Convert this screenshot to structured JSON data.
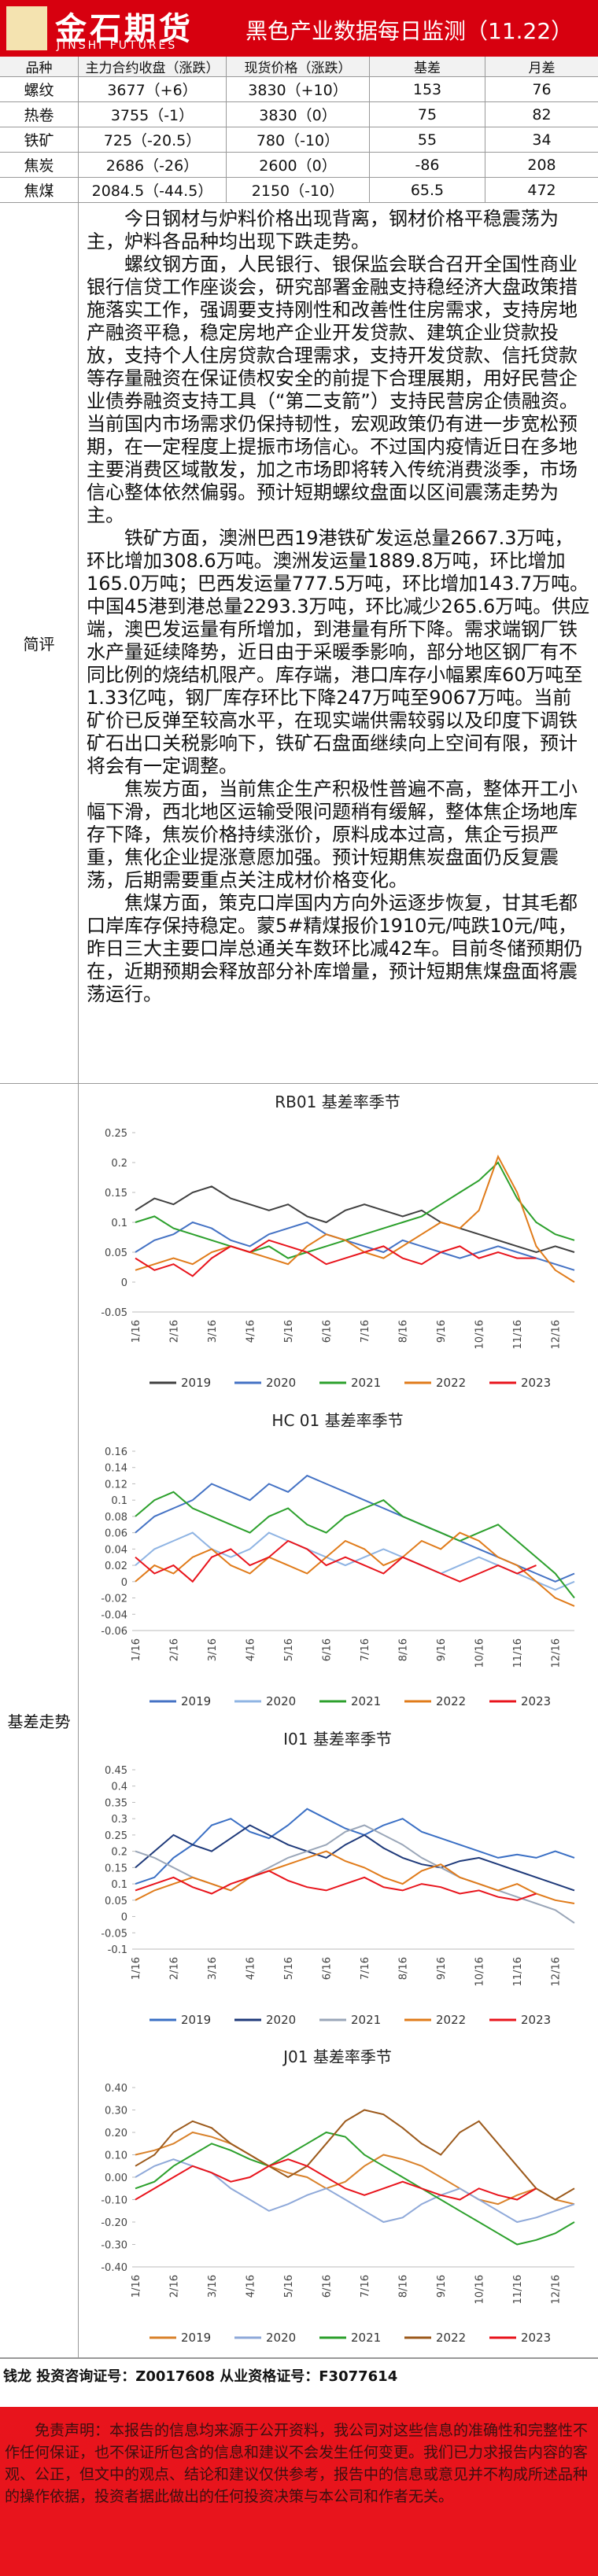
{
  "header": {
    "logo_cn": "金石期货",
    "logo_en": "JINSHI FUTURES",
    "title": "黑色产业数据每日监测（11.22）"
  },
  "table": {
    "columns": [
      "品种",
      "主力合约收盘（涨跌）",
      "现货价格（涨跌）",
      "基差",
      "月差"
    ],
    "rows": [
      [
        "螺纹",
        "3677（+6）",
        "3830（+10）",
        153,
        76
      ],
      [
        "热卷",
        "3755（-1）",
        "3830（0）",
        75,
        82
      ],
      [
        "铁矿",
        "725（-20.5）",
        "780（-10）",
        55,
        34
      ],
      [
        "焦炭",
        "2686（-26）",
        "2600（0）",
        -86,
        208
      ],
      [
        "焦煤",
        "2084.5（-44.5）",
        "2150（-10）",
        65.5,
        472
      ]
    ]
  },
  "commentary": {
    "label": "简评",
    "paragraphs": [
      "今日钢材与炉料价格出现背离，钢材价格平稳震荡为主，炉料各品种均出现下跌走势。",
      "螺纹钢方面，人民银行、银保监会联合召开全国性商业银行信贷工作座谈会，研究部署金融支持稳经济大盘政策措施落实工作，强调要支持刚性和改善性住房需求，支持房地产融资平稳，稳定房地产企业开发贷款、建筑企业贷款投放，支持个人住房贷款合理需求，支持开发贷款、信托贷款等存量融资在保证债权安全的前提下合理展期，用好民营企业债券融资支持工具（“第二支箭”）支持民营房企债融资。当前国内市场需求仍保持韧性，宏观政策仍有进一步宽松预期，在一定程度上提振市场信心。不过国内疫情近日在多地主要消费区域散发，加之市场即将转入传统消费淡季，市场信心整体依然偏弱。预计短期螺纹盘面以区间震荡走势为主。",
      "铁矿方面，澳洲巴西19港铁矿发运总量2667.3万吨，环比增加308.6万吨。澳洲发运量1889.8万吨，环比增加165.0万吨；巴西发运量777.5万吨，环比增加143.7万吨。中国45港到港总量2293.3万吨，环比减少265.6万吨。供应端，澳巴发运量有所增加，到港量有所下降。需求端钢厂铁水产量延续降势，近日由于采暖季影响，部分地区钢厂有不同比例的烧结机限产。库存端，港口库存小幅累库60万吨至1.33亿吨，钢厂库存环比下降247万吨至9067万吨。当前矿价已反弹至较高水平，在现实端供需较弱以及印度下调铁矿石出口关税影响下，铁矿石盘面继续向上空间有限，预计将会有一定调整。",
      "焦炭方面，当前焦企生产积极性普遍不高，整体开工小幅下滑，西北地区运输受限问题稍有缓解，整体焦企场地库存下降，焦炭价格持续涨价，原料成本过高，焦企亏损严重，焦化企业提涨意愿加强。预计短期焦炭盘面仍反复震荡，后期需要重点关注成材价格变化。",
      "焦煤方面，策克口岸国内方向外运逐步恢复，甘其毛都口岸库存保持稳定。蒙5#精煤报价1910元/吨跌10元/吨，昨日三大主要口岸总通关车数环比减42车。目前冬储预期仍在，近期预期会释放部分补库增量，预计短期焦煤盘面将震荡运行。"
    ]
  },
  "basis": {
    "label": "基差走势"
  },
  "chart_data": [
    {
      "type": "line",
      "title": "RB01 基差率季节",
      "categories": [
        "1/16",
        null,
        "2/16",
        null,
        "3/16",
        null,
        "4/16",
        null,
        "5/16",
        null,
        "6/16",
        null,
        "7/16",
        null,
        "8/16",
        null,
        "9/16",
        null,
        "10/16",
        null,
        "11/16",
        null,
        "12/16",
        null
      ],
      "ylim": [
        -0.05,
        0.25
      ],
      "yticks": [
        -0.05,
        0,
        0.05,
        0.1,
        0.15,
        0.2,
        0.25
      ],
      "series": [
        {
          "name": "2019",
          "color": "#404040",
          "values": [
            0.12,
            0.14,
            0.13,
            0.15,
            0.16,
            0.14,
            0.13,
            0.12,
            0.13,
            0.11,
            0.1,
            0.12,
            0.13,
            0.12,
            0.11,
            0.12,
            0.1,
            0.09,
            0.08,
            0.07,
            0.06,
            0.05,
            0.06,
            0.05
          ]
        },
        {
          "name": "2020",
          "color": "#4472c4",
          "values": [
            0.05,
            0.07,
            0.08,
            0.1,
            0.09,
            0.07,
            0.06,
            0.08,
            0.09,
            0.1,
            0.08,
            0.07,
            0.06,
            0.05,
            0.07,
            0.06,
            0.05,
            0.04,
            0.05,
            0.06,
            0.05,
            0.04,
            0.03,
            0.02
          ]
        },
        {
          "name": "2021",
          "color": "#2ca02c",
          "values": [
            0.1,
            0.11,
            0.09,
            0.08,
            0.07,
            0.06,
            0.05,
            0.06,
            0.04,
            0.05,
            0.06,
            0.07,
            0.08,
            0.09,
            0.1,
            0.11,
            0.13,
            0.15,
            0.17,
            0.2,
            0.14,
            0.1,
            0.08,
            0.07
          ]
        },
        {
          "name": "2022",
          "color": "#e07b1a",
          "values": [
            0.02,
            0.03,
            0.04,
            0.03,
            0.05,
            0.06,
            0.05,
            0.04,
            0.03,
            0.06,
            0.08,
            0.07,
            0.05,
            0.04,
            0.06,
            0.08,
            0.1,
            0.09,
            0.12,
            0.21,
            0.15,
            0.06,
            0.02,
            0.0
          ]
        },
        {
          "name": "2023",
          "color": "#e8141c",
          "values": [
            0.04,
            0.02,
            0.03,
            0.01,
            0.04,
            0.06,
            0.05,
            0.07,
            0.06,
            0.05,
            0.03,
            0.04,
            0.05,
            0.06,
            0.04,
            0.03,
            0.05,
            0.06,
            0.04,
            0.05,
            0.04,
            0.04,
            null,
            null
          ]
        }
      ]
    },
    {
      "type": "line",
      "title": "HC 01 基差率季节",
      "categories": [
        "1/16",
        null,
        "2/16",
        null,
        "3/16",
        null,
        "4/16",
        null,
        "5/16",
        null,
        "6/16",
        null,
        "7/16",
        null,
        "8/16",
        null,
        "9/16",
        null,
        "10/16",
        null,
        "11/16",
        null,
        "12/16",
        null
      ],
      "ylim": [
        -0.06,
        0.16
      ],
      "yticks": [
        -0.06,
        -0.04,
        -0.02,
        0,
        0.02,
        0.04,
        0.06,
        0.08,
        0.1,
        0.12,
        0.14,
        0.16
      ],
      "series": [
        {
          "name": "2019",
          "color": "#4472c4",
          "values": [
            0.06,
            0.08,
            0.09,
            0.1,
            0.12,
            0.11,
            0.1,
            0.12,
            0.11,
            0.13,
            0.12,
            0.11,
            0.1,
            0.09,
            0.08,
            0.07,
            0.06,
            0.05,
            0.04,
            0.03,
            0.02,
            0.01,
            0.0,
            0.01
          ]
        },
        {
          "name": "2020",
          "color": "#8fb4e3",
          "values": [
            0.02,
            0.04,
            0.05,
            0.06,
            0.04,
            0.03,
            0.04,
            0.06,
            0.05,
            0.04,
            0.03,
            0.02,
            0.03,
            0.04,
            0.03,
            0.02,
            0.01,
            0.02,
            0.03,
            0.02,
            0.01,
            0.0,
            -0.01,
            0.0
          ]
        },
        {
          "name": "2021",
          "color": "#2ca02c",
          "values": [
            0.08,
            0.1,
            0.11,
            0.09,
            0.08,
            0.07,
            0.06,
            0.08,
            0.09,
            0.07,
            0.06,
            0.08,
            0.09,
            0.1,
            0.08,
            0.07,
            0.06,
            0.05,
            0.06,
            0.07,
            0.05,
            0.03,
            0.01,
            -0.02
          ]
        },
        {
          "name": "2022",
          "color": "#e07b1a",
          "values": [
            0.0,
            0.02,
            0.01,
            0.03,
            0.04,
            0.02,
            0.01,
            0.03,
            0.02,
            0.01,
            0.03,
            0.05,
            0.04,
            0.02,
            0.03,
            0.05,
            0.04,
            0.06,
            0.05,
            0.03,
            0.02,
            0.0,
            -0.02,
            -0.03
          ]
        },
        {
          "name": "2023",
          "color": "#e8141c",
          "values": [
            0.03,
            0.01,
            0.02,
            0.0,
            0.03,
            0.04,
            0.02,
            0.03,
            0.05,
            0.04,
            0.02,
            0.03,
            0.02,
            0.01,
            0.03,
            0.02,
            0.01,
            0.0,
            0.01,
            0.02,
            0.01,
            0.02,
            null,
            null
          ]
        }
      ]
    },
    {
      "type": "line",
      "title": "I01 基差率季节",
      "categories": [
        "1/16",
        null,
        "2/16",
        null,
        "3/16",
        null,
        "4/16",
        null,
        "5/16",
        null,
        "6/16",
        null,
        "7/16",
        null,
        "8/16",
        null,
        "9/16",
        null,
        "10/16",
        null,
        "11/16",
        null,
        "12/16",
        null
      ],
      "ylim": [
        -0.1,
        0.45
      ],
      "yticks": [
        -0.1,
        -0.05,
        0,
        0.05,
        0.1,
        0.15,
        0.2,
        0.25,
        0.3,
        0.35,
        0.4,
        0.45
      ],
      "series": [
        {
          "name": "2019",
          "color": "#3a6fc4",
          "values": [
            0.1,
            0.12,
            0.18,
            0.22,
            0.28,
            0.3,
            0.26,
            0.24,
            0.28,
            0.33,
            0.3,
            0.27,
            0.25,
            0.28,
            0.3,
            0.26,
            0.24,
            0.22,
            0.2,
            0.18,
            0.19,
            0.18,
            0.2,
            0.18
          ]
        },
        {
          "name": "2020",
          "color": "#1f3a7a",
          "values": [
            0.15,
            0.2,
            0.25,
            0.22,
            0.2,
            0.24,
            0.28,
            0.25,
            0.22,
            0.2,
            0.18,
            0.22,
            0.25,
            0.21,
            0.18,
            0.16,
            0.15,
            0.17,
            0.18,
            0.16,
            0.14,
            0.12,
            0.1,
            0.08
          ]
        },
        {
          "name": "2021",
          "color": "#9aa6b8",
          "values": [
            0.2,
            0.18,
            0.15,
            0.12,
            0.1,
            0.08,
            0.12,
            0.15,
            0.18,
            0.2,
            0.22,
            0.26,
            0.28,
            0.25,
            0.22,
            0.18,
            0.15,
            0.12,
            0.1,
            0.08,
            0.06,
            0.04,
            0.02,
            -0.02
          ]
        },
        {
          "name": "2022",
          "color": "#e07b1a",
          "values": [
            0.05,
            0.08,
            0.1,
            0.12,
            0.1,
            0.08,
            0.12,
            0.14,
            0.16,
            0.18,
            0.2,
            0.17,
            0.15,
            0.12,
            0.1,
            0.14,
            0.16,
            0.12,
            0.1,
            0.08,
            0.1,
            0.07,
            0.05,
            0.04
          ]
        },
        {
          "name": "2023",
          "color": "#e8141c",
          "values": [
            0.08,
            0.1,
            0.12,
            0.09,
            0.07,
            0.1,
            0.12,
            0.14,
            0.11,
            0.09,
            0.08,
            0.1,
            0.12,
            0.09,
            0.08,
            0.1,
            0.09,
            0.07,
            0.08,
            0.06,
            0.05,
            0.07,
            null,
            null
          ]
        }
      ]
    },
    {
      "type": "line",
      "title": "J01 基差率季节",
      "categories": [
        "1/16",
        null,
        "2/16",
        null,
        "3/16",
        null,
        "4/16",
        null,
        "5/16",
        null,
        "6/16",
        null,
        "7/16",
        null,
        "8/16",
        null,
        "9/16",
        null,
        "10/16",
        null,
        "11/16",
        null,
        "12/16",
        null
      ],
      "ylim": [
        -0.4,
        0.4
      ],
      "yticks": [
        {
          "value": -0.4,
          "label": "-0.40"
        },
        {
          "value": -0.3,
          "label": "-0.30"
        },
        {
          "value": -0.2,
          "label": "-0.20"
        },
        {
          "value": -0.1,
          "label": "-0.10"
        },
        {
          "value": 0,
          "label": "0.00"
        },
        {
          "value": 0.1,
          "label": "0.10"
        },
        {
          "value": 0.2,
          "label": "0.20"
        },
        {
          "value": 0.3,
          "label": "0.30"
        },
        {
          "value": 0.4,
          "label": "0.40"
        }
      ],
      "series": [
        {
          "name": "2019",
          "color": "#d9822b",
          "values": [
            0.1,
            0.12,
            0.15,
            0.2,
            0.18,
            0.15,
            0.1,
            0.05,
            0.02,
            0.0,
            -0.05,
            -0.02,
            0.05,
            0.1,
            0.08,
            0.05,
            0.0,
            -0.05,
            -0.1,
            -0.12,
            -0.08,
            -0.05,
            -0.1,
            -0.12
          ]
        },
        {
          "name": "2020",
          "color": "#8fa9d9",
          "values": [
            0.0,
            0.05,
            0.08,
            0.05,
            0.02,
            -0.05,
            -0.1,
            -0.15,
            -0.12,
            -0.08,
            -0.05,
            -0.1,
            -0.15,
            -0.2,
            -0.18,
            -0.12,
            -0.08,
            -0.05,
            -0.1,
            -0.15,
            -0.2,
            -0.18,
            -0.15,
            -0.12
          ]
        },
        {
          "name": "2021",
          "color": "#2ca02c",
          "values": [
            -0.05,
            -0.02,
            0.05,
            0.1,
            0.15,
            0.12,
            0.08,
            0.05,
            0.1,
            0.15,
            0.2,
            0.18,
            0.1,
            0.05,
            0.0,
            -0.05,
            -0.1,
            -0.15,
            -0.2,
            -0.25,
            -0.3,
            -0.28,
            -0.25,
            -0.2
          ]
        },
        {
          "name": "2022",
          "color": "#9c5a1c",
          "values": [
            0.05,
            0.1,
            0.2,
            0.25,
            0.22,
            0.15,
            0.1,
            0.05,
            0.0,
            0.05,
            0.15,
            0.25,
            0.3,
            0.28,
            0.22,
            0.15,
            0.1,
            0.2,
            0.25,
            0.15,
            0.05,
            -0.05,
            -0.1,
            -0.05
          ]
        },
        {
          "name": "2023",
          "color": "#e8141c",
          "values": [
            -0.1,
            -0.05,
            0.0,
            0.05,
            0.02,
            -0.02,
            0.0,
            0.05,
            0.08,
            0.05,
            0.0,
            -0.05,
            -0.08,
            -0.05,
            -0.02,
            -0.05,
            -0.08,
            -0.1,
            -0.05,
            -0.08,
            -0.1,
            -0.05,
            null,
            null
          ]
        }
      ]
    }
  ],
  "footer": {
    "analyst": "钱龙 投资咨询证号：Z0017608 从业资格证号：F3077614",
    "disclaimer": "免责声明：本报告的信息均来源于公开资料，我公司对这些信息的准确性和完整性不作任何保证，也不保证所包含的信息和建议不会发生任何变更。我们已力求报告内容的客观、公正，但文中的观点、结论和建议仅供参考，报告中的信息或意见并不构成所述品种的操作依据，投资者据此做出的任何投资决策与本公司和作者无关。"
  }
}
